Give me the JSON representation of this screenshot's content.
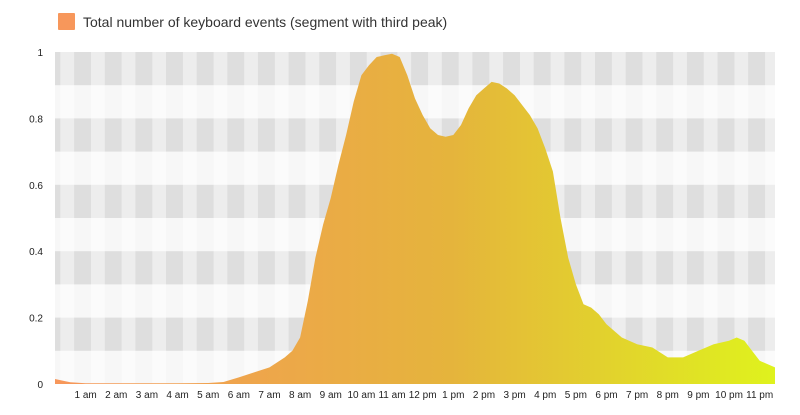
{
  "legend": {
    "label": "Total number of keyboard events (segment with third peak)"
  },
  "colors": {
    "start": "#f7975b",
    "mid": "#e5b43c",
    "end": "#dff21d",
    "grid_dark": "#dedede",
    "grid_light": "#f7f7f7"
  },
  "chart_data": {
    "type": "area",
    "title": "",
    "xlabel": "",
    "ylabel": "",
    "series": [
      {
        "name": "Total number of keyboard events (segment with third peak)",
        "x": [
          0,
          0.5,
          1,
          1.5,
          2,
          3,
          4,
          5,
          5.5,
          6,
          6.5,
          7,
          7.5,
          7.75,
          8,
          8.25,
          8.5,
          8.75,
          9,
          9.25,
          9.5,
          9.75,
          10,
          10.25,
          10.5,
          10.75,
          11,
          11.25,
          11.5,
          11.75,
          12,
          12.25,
          12.5,
          12.75,
          13,
          13.25,
          13.5,
          13.75,
          14,
          14.25,
          14.5,
          14.75,
          15,
          15.25,
          15.5,
          15.75,
          16,
          16.25,
          16.5,
          16.75,
          17,
          17.25,
          17.5,
          17.75,
          18,
          18.5,
          19,
          19.5,
          20,
          20.5,
          21,
          21.5,
          22,
          22.25,
          22.5,
          22.75,
          23,
          23.5
        ],
        "values": [
          0.015,
          0.005,
          0.002,
          0.002,
          0.002,
          0.002,
          0.002,
          0.003,
          0.006,
          0.02,
          0.035,
          0.05,
          0.08,
          0.1,
          0.14,
          0.25,
          0.38,
          0.48,
          0.56,
          0.66,
          0.75,
          0.85,
          0.93,
          0.96,
          0.985,
          0.99,
          0.995,
          0.985,
          0.93,
          0.86,
          0.81,
          0.77,
          0.75,
          0.745,
          0.75,
          0.78,
          0.83,
          0.87,
          0.89,
          0.91,
          0.905,
          0.89,
          0.87,
          0.84,
          0.81,
          0.77,
          0.71,
          0.64,
          0.5,
          0.38,
          0.3,
          0.24,
          0.23,
          0.21,
          0.18,
          0.14,
          0.12,
          0.11,
          0.08,
          0.08,
          0.1,
          0.12,
          0.13,
          0.14,
          0.13,
          0.1,
          0.07,
          0.05
        ]
      }
    ],
    "xlim": [
      0,
      23.5
    ],
    "ylim": [
      0,
      1
    ],
    "yticks": [
      0,
      0.2,
      0.4,
      0.6,
      0.8,
      1
    ],
    "ytick_labels": [
      "0",
      "0.2",
      "0.4",
      "0.6",
      "0.8",
      "1"
    ],
    "xticks": [
      1,
      2,
      3,
      4,
      5,
      6,
      7,
      8,
      9,
      10,
      11,
      12,
      13,
      14,
      15,
      16,
      17,
      18,
      19,
      20,
      21,
      22,
      23
    ],
    "xtick_labels": [
      "1 am",
      "2 am",
      "3 am",
      "4 am",
      "5 am",
      "6 am",
      "7 am",
      "8 am",
      "9 am",
      "10 am",
      "11 am",
      "12 pm",
      "1 pm",
      "2 pm",
      "3 pm",
      "4 pm",
      "5 pm",
      "6 pm",
      "7 pm",
      "8 pm",
      "9 pm",
      "10 pm",
      "11 pm"
    ],
    "grid": true,
    "legend_position": "top-left"
  }
}
